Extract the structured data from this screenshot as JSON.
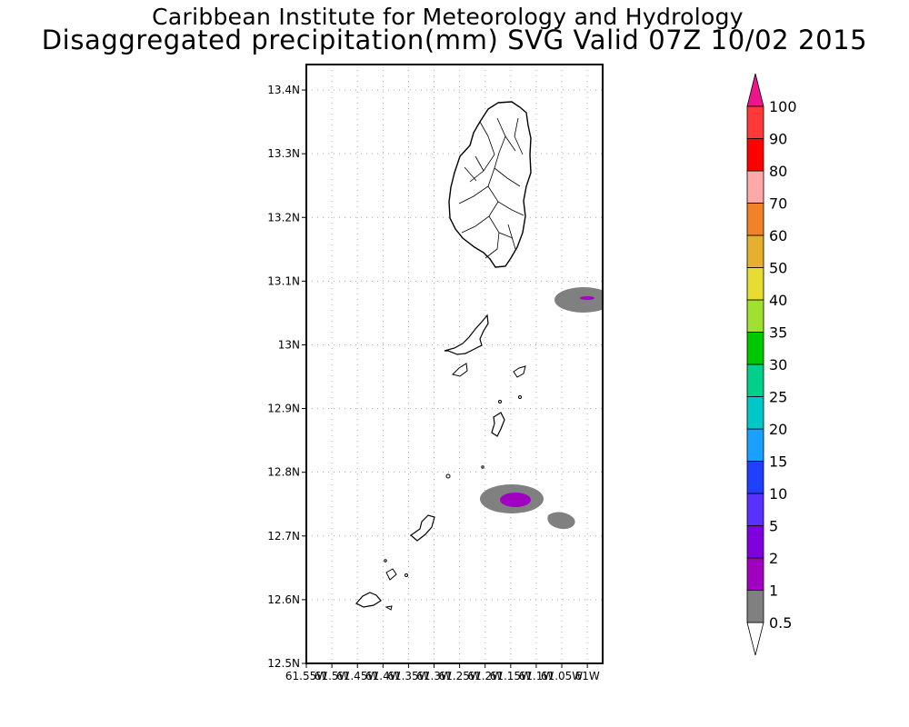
{
  "header": {
    "line1": "Caribbean Institute for Meteorology and Hydrology",
    "line2": "Disaggregated precipitation(mm) SVG Valid 07Z 10/02 2015"
  },
  "map": {
    "lat_ticks": [
      "13.4N",
      "13.3N",
      "13.2N",
      "13.1N",
      "13N",
      "12.9N",
      "12.8N",
      "12.7N",
      "12.6N",
      "12.5N"
    ],
    "lon_ticks": [
      "61.55W",
      "61.5W",
      "61.45W",
      "61.4W",
      "61.35W",
      "61.3W",
      "61.25W",
      "61.2W",
      "61.15W",
      "61.1W",
      "61.05W",
      "61W"
    ],
    "lat_range": [
      12.5,
      13.44
    ],
    "lon_range": [
      -61.55,
      -60.97
    ],
    "grid": "dotted",
    "islands": [
      "St. Vincent",
      "Bequia",
      "Mustique",
      "Canouan",
      "Mayreau",
      "Union Island",
      "Carriacou"
    ],
    "precip_cells": [
      {
        "center_lon": -61.148,
        "center_lat": 12.757,
        "outer_level": "0.5",
        "core_level": "2"
      },
      {
        "center_lon": -61.003,
        "center_lat": 13.072,
        "outer_level": "0.5",
        "core_level": "2"
      },
      {
        "center_lon": -61.07,
        "center_lat": 12.724,
        "outer_level": "0.5"
      }
    ]
  },
  "colorbar": {
    "levels": [
      "0.5",
      "1",
      "2",
      "5",
      "10",
      "15",
      "20",
      "25",
      "30",
      "35",
      "40",
      "50",
      "60",
      "70",
      "80",
      "90",
      "100"
    ],
    "colors": [
      "#808080",
      "#a000c0",
      "#8000e0",
      "#5a30ff",
      "#2040ff",
      "#1aa0ff",
      "#00c8c8",
      "#00d08a",
      "#00c800",
      "#a0e030",
      "#e6dc32",
      "#e6af2d",
      "#f08228",
      "#ffa8a8",
      "#ff0000",
      "#ff3838"
    ],
    "bottom_arrow_color": "#ffffff",
    "top_arrow_color": "#f0148c"
  }
}
